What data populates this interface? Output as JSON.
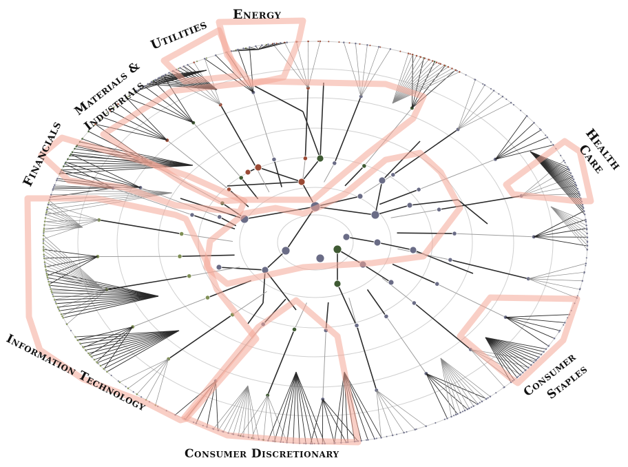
{
  "figure": {
    "sector_labels": {
      "energy": "Energy",
      "utilities": "Utilities",
      "materials_line1": "Materials &",
      "materials_line2": "Industrials",
      "financials": "Financials",
      "health_line1": "Health",
      "health_line2": "Care",
      "information_technology": "Information Technology",
      "consumer_staples_line1": "Consumer",
      "consumer_staples_line2": "Staples",
      "consumer_discretionary": "Consumer Discretionary"
    },
    "colors": {
      "highlight": "#f4a898",
      "ring": "#cfcfcf",
      "node_slate": "#6a6c86",
      "node_green": "#3f5a33",
      "node_brown": "#9a4a35",
      "node_olive": "#7f8f55",
      "edge_dark": "#2a2a2a",
      "edge_light": "#9c9c9c"
    }
  }
}
